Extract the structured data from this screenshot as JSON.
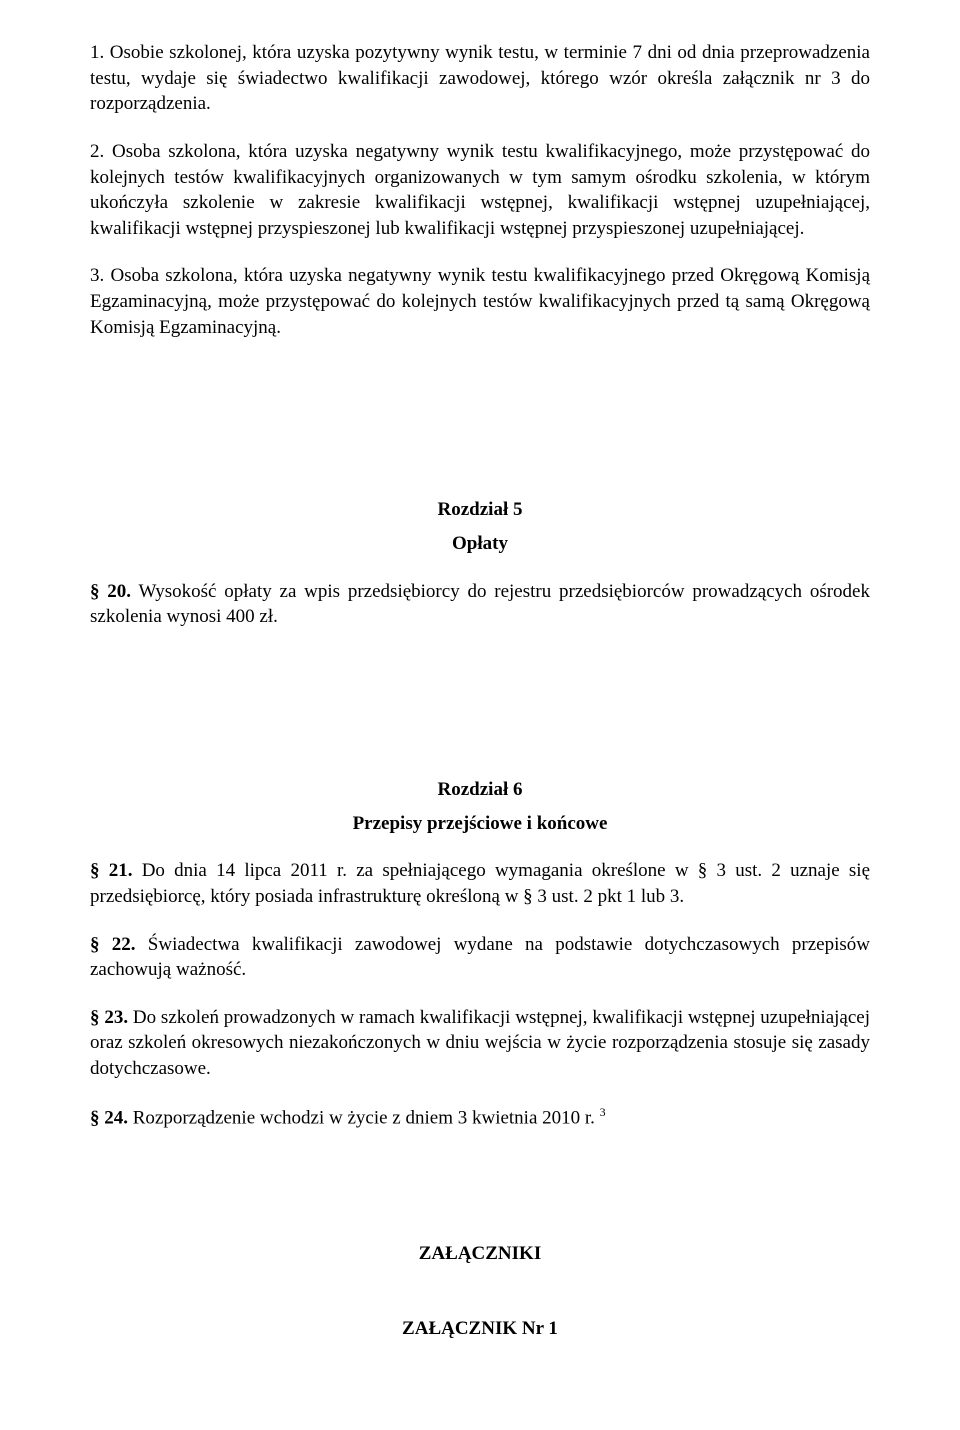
{
  "p1": "1. Osobie szkolonej, która uzyska pozytywny wynik testu, w terminie 7 dni od dnia przeprowadzenia testu, wydaje się świadectwo kwalifikacji zawodowej, którego wzór określa załącznik nr 3 do rozporządzenia.",
  "p2": "2. Osoba szkolona, która uzyska negatywny wynik testu kwalifikacyjnego, może przystępować do kolejnych testów kwalifikacyjnych organizowanych w tym samym ośrodku szkolenia, w którym ukończyła szkolenie w zakresie kwalifikacji wstępnej, kwalifikacji wstępnej uzupełniającej, kwalifikacji wstępnej przyspieszonej lub kwalifikacji wstępnej przyspieszonej uzupełniającej.",
  "p3": "3. Osoba szkolona, która uzyska negatywny wynik testu kwalifikacyjnego przed Okręgową Komisją Egzaminacyjną, może przystępować do kolejnych testów kwalifikacyjnych przed tą samą Okręgową Komisją Egzaminacyjną.",
  "ch5": {
    "heading": "Rozdział  5",
    "title": "Opłaty",
    "s20_lead": "§ 20.",
    "s20_text": " Wysokość opłaty za wpis przedsiębiorcy do rejestru przedsiębiorców prowadzących ośrodek szkolenia wynosi 400 zł."
  },
  "ch6": {
    "heading": "Rozdział  6",
    "title": "Przepisy przejściowe i końcowe",
    "s21_lead": "§ 21.",
    "s21_text": " Do dnia 14 lipca 2011 r. za spełniającego wymagania określone w § 3 ust. 2 uznaje się przedsiębiorcę, który posiada infrastrukturę określoną w § 3 ust. 2 pkt 1 lub 3.",
    "s22_lead": "§ 22.",
    "s22_text": " Świadectwa kwalifikacji zawodowej wydane na podstawie dotychczasowych przepisów zachowują ważność.",
    "s23_lead": "§ 23.",
    "s23_text": " Do szkoleń prowadzonych w ramach kwalifikacji wstępnej, kwalifikacji wstępnej uzupełniającej oraz szkoleń okresowych niezakończonych w dniu wejścia w życie rozporządzenia stosuje się zasady dotychczasowe.",
    "s24_lead": "§ 24.",
    "s24_text": " Rozporządzenie wchodzi w życie z dniem 3 kwietnia 2010 r. ",
    "s24_fn": "3"
  },
  "attachments": "ZAŁĄCZNIKI",
  "attachment1": "ZAŁĄCZNIK Nr  1"
}
